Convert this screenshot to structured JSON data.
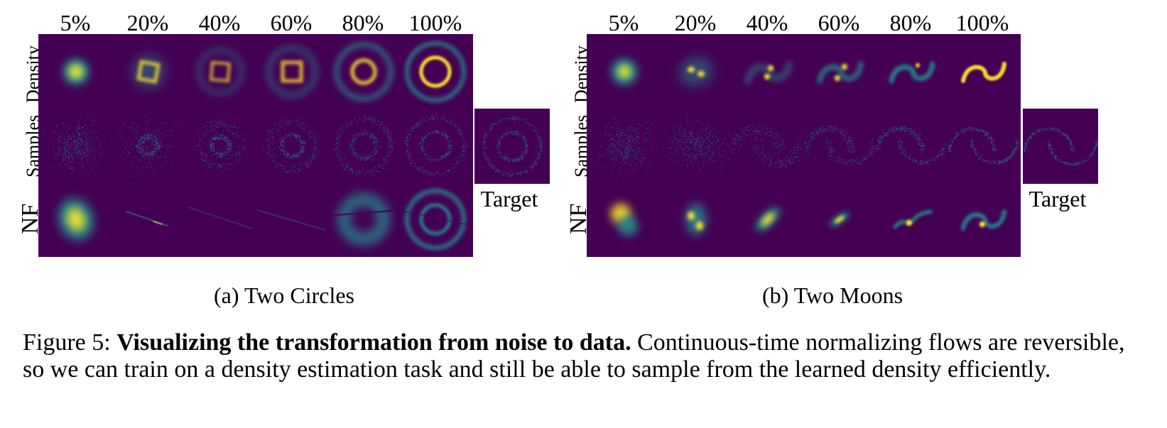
{
  "panels": [
    {
      "id": "two-circles",
      "subcaption": "(a) Two Circles",
      "columns": [
        "5%",
        "20%",
        "40%",
        "60%",
        "80%",
        "100%"
      ],
      "rows": [
        "Density",
        "Samples",
        "NF"
      ],
      "target_label": "Target"
    },
    {
      "id": "two-moons",
      "subcaption": "(b) Two Moons",
      "columns": [
        "5%",
        "20%",
        "40%",
        "60%",
        "80%",
        "100%"
      ],
      "rows": [
        "Density",
        "Samples",
        "NF"
      ],
      "target_label": "Target"
    }
  ],
  "caption": {
    "prefix": "Figure 5: ",
    "bold": "Visualizing the transformation from noise to data.",
    "rest": " Continuous-time normalizing flows are reversible, so we can train on a density estimation task and still be able to sample from the learned density efficiently."
  },
  "colors": {
    "background": "#440154",
    "mid": "#21918c",
    "high": "#fde725"
  }
}
